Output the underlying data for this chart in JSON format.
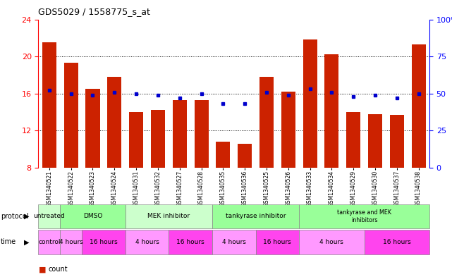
{
  "title": "GDS5029 / 1558775_s_at",
  "samples": [
    "GSM1340521",
    "GSM1340522",
    "GSM1340523",
    "GSM1340524",
    "GSM1340531",
    "GSM1340532",
    "GSM1340527",
    "GSM1340528",
    "GSM1340535",
    "GSM1340536",
    "GSM1340525",
    "GSM1340526",
    "GSM1340533",
    "GSM1340534",
    "GSM1340529",
    "GSM1340530",
    "GSM1340537",
    "GSM1340538"
  ],
  "bar_values": [
    21.5,
    19.3,
    16.5,
    17.8,
    14.0,
    14.2,
    15.3,
    15.3,
    10.8,
    10.6,
    17.8,
    16.2,
    21.8,
    20.2,
    14.0,
    13.8,
    13.7,
    21.3
  ],
  "dot_percentiles": [
    52,
    50,
    49,
    51,
    50,
    49,
    47,
    50,
    43,
    43,
    51,
    49,
    53,
    51,
    48,
    49,
    47,
    50
  ],
  "bar_color": "#cc2200",
  "dot_color": "#0000cc",
  "ylim_left": [
    8,
    24
  ],
  "ylim_right": [
    0,
    100
  ],
  "yticks_left": [
    8,
    12,
    16,
    20,
    24
  ],
  "yticks_right": [
    0,
    25,
    50,
    75,
    100
  ],
  "protocol_groups": [
    {
      "label": "untreated",
      "start": 0,
      "end": 1,
      "color": "#ccffcc"
    },
    {
      "label": "DMSO",
      "start": 1,
      "end": 4,
      "color": "#99ff99"
    },
    {
      "label": "MEK inhibitor",
      "start": 4,
      "end": 8,
      "color": "#ccffcc"
    },
    {
      "label": "tankyrase inhibitor",
      "start": 8,
      "end": 12,
      "color": "#99ff99"
    },
    {
      "label": "tankyrase and MEK\ninhibitors",
      "start": 12,
      "end": 18,
      "color": "#99ff99"
    }
  ],
  "time_groups": [
    {
      "label": "control",
      "start": 0,
      "end": 1,
      "color": "#ff99ff"
    },
    {
      "label": "4 hours",
      "start": 1,
      "end": 2,
      "color": "#ff99ff"
    },
    {
      "label": "16 hours",
      "start": 2,
      "end": 4,
      "color": "#ff44ee"
    },
    {
      "label": "4 hours",
      "start": 4,
      "end": 6,
      "color": "#ff99ff"
    },
    {
      "label": "16 hours",
      "start": 6,
      "end": 8,
      "color": "#ff44ee"
    },
    {
      "label": "4 hours",
      "start": 8,
      "end": 10,
      "color": "#ff99ff"
    },
    {
      "label": "16 hours",
      "start": 10,
      "end": 12,
      "color": "#ff44ee"
    },
    {
      "label": "4 hours",
      "start": 12,
      "end": 15,
      "color": "#ff99ff"
    },
    {
      "label": "16 hours",
      "start": 15,
      "end": 18,
      "color": "#ff44ee"
    }
  ],
  "background_color": "#ffffff"
}
